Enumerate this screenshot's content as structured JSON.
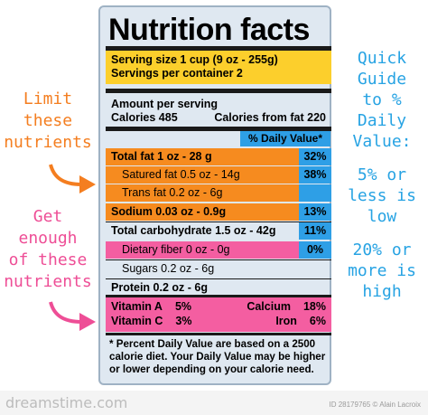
{
  "title": "Nutrition facts",
  "serving": {
    "size": "Serving size 1 cup (9 oz - 255g)",
    "per_container": "Servings per container 2"
  },
  "amount": {
    "header": "Amount per serving",
    "calories": "Calories 485",
    "calories_fat": "Calories from fat 220"
  },
  "dv_header": "% Daily Value*",
  "rows": [
    {
      "name": "Total fat 1 oz - 28 g",
      "pct": "32%"
    },
    {
      "name": "Satured fat 0.5 oz - 14g",
      "pct": "38%"
    },
    {
      "name": "Trans fat 0.2 oz - 6g",
      "pct": ""
    },
    {
      "name": "Sodium 0.03 oz - 0.9g",
      "pct": "13%"
    },
    {
      "name": "Total carbohydrate 1.5 oz - 42g",
      "pct": "11%"
    },
    {
      "name": "Dietary fiber 0 oz - 0g",
      "pct": "0%"
    },
    {
      "name": "Sugars 0.2 oz - 6g",
      "pct": ""
    },
    {
      "name": "Protein 0.2 oz - 6g",
      "pct": ""
    }
  ],
  "vitamins": {
    "a_label": "Vitamin A",
    "a_pct": "5%",
    "c_label": "Vitamin C",
    "c_pct": "3%",
    "calcium_label": "Calcium",
    "calcium_pct": "18%",
    "iron_label": "Iron",
    "iron_pct": "6%"
  },
  "footnote": "* Percent Daily Value are based on a 2500 calorie diet. Your Daily Value may be higher or lower depending on your calorie need.",
  "side_left_1": [
    "Limit",
    "these",
    "nutrients"
  ],
  "side_left_2": [
    "Get",
    "enough",
    "of these",
    "nutrients"
  ],
  "side_right": [
    "Quick",
    "Guide",
    "to %",
    "Daily",
    "Value:",
    "",
    "5% or",
    "less is",
    "low",
    "",
    "20% or",
    "more is",
    "high"
  ],
  "watermark": {
    "left": "dreamstime.com",
    "right": "ID 28179765 © Alain Lacroix"
  },
  "colors": {
    "orange": "#f68b1f",
    "pink": "#f45ea1",
    "blue": "#2e9fe6",
    "yellow": "#fccf2c"
  }
}
